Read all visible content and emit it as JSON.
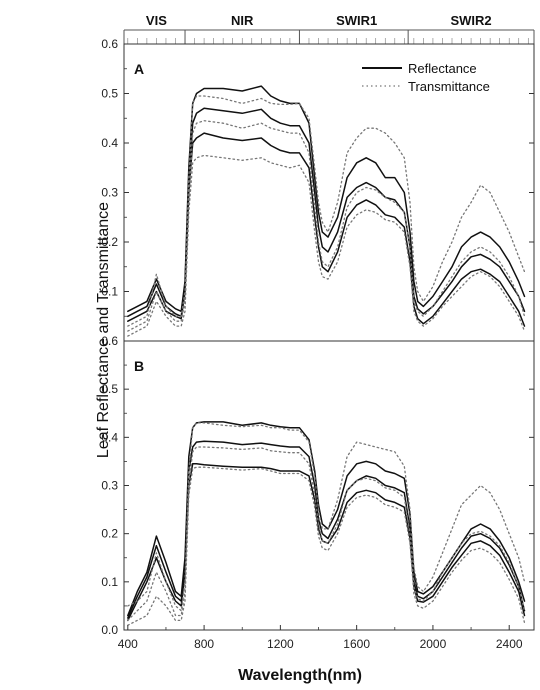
{
  "chart_data": {
    "type": "line",
    "xlabel": "Wavelength(nm)",
    "ylabel": "Leaf Reflectance and Transmittance",
    "xlim": [
      380,
      2530
    ],
    "ylim": [
      0,
      0.6
    ],
    "x_ticks": [
      "400",
      "800",
      "1200",
      "1600",
      "2000",
      "2400"
    ],
    "y_ticks": [
      "0.0",
      "0.1",
      "0.2",
      "0.3",
      "0.4",
      "0.5",
      "0.6"
    ],
    "regions": [
      {
        "label": "VIS",
        "center": 550,
        "end": 700
      },
      {
        "label": "NIR",
        "center": 1000,
        "end": 1300
      },
      {
        "label": "SWIR1",
        "center": 1600,
        "end": 1870
      },
      {
        "label": "SWIR2",
        "center": 2200,
        "end": null
      }
    ],
    "legend": {
      "position": "top-right",
      "entries": [
        {
          "label": "Reflectance",
          "style": "solid"
        },
        {
          "label": "Transmittance",
          "style": "dotted"
        }
      ]
    },
    "x": [
      400,
      450,
      500,
      550,
      600,
      650,
      680,
      700,
      720,
      740,
      760,
      800,
      900,
      1000,
      1100,
      1150,
      1200,
      1250,
      1300,
      1350,
      1380,
      1400,
      1420,
      1450,
      1500,
      1550,
      1600,
      1650,
      1700,
      1750,
      1800,
      1850,
      1880,
      1900,
      1920,
      1950,
      2000,
      2050,
      2100,
      2150,
      2200,
      2250,
      2300,
      2350,
      2400,
      2450,
      2480
    ],
    "panels": [
      {
        "label": "A",
        "series": [
          {
            "style": "solid",
            "values": [
              0.06,
              0.07,
              0.08,
              0.125,
              0.08,
              0.065,
              0.06,
              0.12,
              0.35,
              0.48,
              0.5,
              0.51,
              0.51,
              0.505,
              0.515,
              0.495,
              0.485,
              0.48,
              0.48,
              0.44,
              0.33,
              0.26,
              0.22,
              0.21,
              0.25,
              0.33,
              0.36,
              0.37,
              0.36,
              0.33,
              0.33,
              0.3,
              0.22,
              0.12,
              0.08,
              0.07,
              0.09,
              0.12,
              0.15,
              0.19,
              0.21,
              0.22,
              0.21,
              0.19,
              0.16,
              0.12,
              0.09
            ]
          },
          {
            "style": "solid",
            "values": [
              0.05,
              0.06,
              0.07,
              0.115,
              0.07,
              0.055,
              0.05,
              0.11,
              0.32,
              0.44,
              0.46,
              0.47,
              0.465,
              0.46,
              0.468,
              0.45,
              0.44,
              0.435,
              0.435,
              0.4,
              0.3,
              0.23,
              0.19,
              0.18,
              0.22,
              0.29,
              0.31,
              0.32,
              0.31,
              0.29,
              0.285,
              0.26,
              0.19,
              0.09,
              0.065,
              0.055,
              0.07,
              0.095,
              0.12,
              0.15,
              0.17,
              0.175,
              0.165,
              0.15,
              0.12,
              0.09,
              0.06
            ]
          },
          {
            "style": "solid",
            "values": [
              0.04,
              0.05,
              0.06,
              0.1,
              0.06,
              0.05,
              0.045,
              0.1,
              0.3,
              0.4,
              0.41,
              0.42,
              0.41,
              0.405,
              0.41,
              0.395,
              0.385,
              0.38,
              0.38,
              0.35,
              0.25,
              0.19,
              0.15,
              0.14,
              0.18,
              0.25,
              0.275,
              0.285,
              0.275,
              0.255,
              0.25,
              0.23,
              0.16,
              0.07,
              0.045,
              0.035,
              0.05,
              0.075,
              0.1,
              0.125,
              0.14,
              0.145,
              0.135,
              0.12,
              0.09,
              0.06,
              0.03
            ]
          },
          {
            "style": "dotted",
            "values": [
              0.03,
              0.04,
              0.05,
              0.135,
              0.07,
              0.05,
              0.05,
              0.1,
              0.33,
              0.48,
              0.495,
              0.495,
              0.49,
              0.48,
              0.49,
              0.48,
              0.478,
              0.478,
              0.48,
              0.45,
              0.35,
              0.28,
              0.24,
              0.22,
              0.28,
              0.38,
              0.41,
              0.43,
              0.43,
              0.42,
              0.4,
              0.37,
              0.28,
              0.15,
              0.1,
              0.08,
              0.11,
              0.16,
              0.2,
              0.25,
              0.28,
              0.315,
              0.3,
              0.26,
              0.22,
              0.17,
              0.14
            ]
          },
          {
            "style": "dotted",
            "values": [
              0.02,
              0.03,
              0.04,
              0.1,
              0.06,
              0.04,
              0.04,
              0.08,
              0.28,
              0.42,
              0.44,
              0.445,
              0.44,
              0.43,
              0.44,
              0.43,
              0.425,
              0.42,
              0.42,
              0.38,
              0.27,
              0.2,
              0.16,
              0.15,
              0.19,
              0.27,
              0.3,
              0.31,
              0.305,
              0.29,
              0.28,
              0.26,
              0.19,
              0.08,
              0.06,
              0.05,
              0.07,
              0.1,
              0.13,
              0.16,
              0.18,
              0.19,
              0.18,
              0.16,
              0.13,
              0.09,
              0.05
            ]
          },
          {
            "style": "dotted",
            "values": [
              0.01,
              0.02,
              0.03,
              0.08,
              0.05,
              0.03,
              0.03,
              0.06,
              0.26,
              0.36,
              0.37,
              0.375,
              0.37,
              0.365,
              0.37,
              0.36,
              0.355,
              0.35,
              0.355,
              0.32,
              0.22,
              0.16,
              0.13,
              0.125,
              0.16,
              0.23,
              0.255,
              0.265,
              0.26,
              0.245,
              0.24,
              0.22,
              0.15,
              0.06,
              0.04,
              0.03,
              0.045,
              0.07,
              0.09,
              0.11,
              0.13,
              0.14,
              0.13,
              0.11,
              0.08,
              0.05,
              0.02
            ]
          }
        ]
      },
      {
        "label": "B",
        "series": [
          {
            "style": "solid",
            "values": [
              0.03,
              0.08,
              0.12,
              0.195,
              0.14,
              0.08,
              0.07,
              0.15,
              0.36,
              0.42,
              0.43,
              0.432,
              0.432,
              0.425,
              0.43,
              0.425,
              0.422,
              0.42,
              0.42,
              0.395,
              0.33,
              0.26,
              0.22,
              0.21,
              0.25,
              0.32,
              0.345,
              0.35,
              0.345,
              0.33,
              0.325,
              0.315,
              0.24,
              0.12,
              0.08,
              0.075,
              0.09,
              0.12,
              0.15,
              0.18,
              0.21,
              0.22,
              0.21,
              0.185,
              0.15,
              0.1,
              0.06
            ]
          },
          {
            "style": "solid",
            "values": [
              0.025,
              0.07,
              0.11,
              0.175,
              0.12,
              0.07,
              0.06,
              0.13,
              0.33,
              0.38,
              0.39,
              0.392,
              0.39,
              0.385,
              0.388,
              0.385,
              0.382,
              0.38,
              0.38,
              0.36,
              0.3,
              0.23,
              0.2,
              0.19,
              0.23,
              0.29,
              0.31,
              0.32,
              0.315,
              0.3,
              0.295,
              0.285,
              0.21,
              0.1,
              0.07,
              0.065,
              0.08,
              0.11,
              0.14,
              0.17,
              0.195,
              0.2,
              0.19,
              0.17,
              0.135,
              0.09,
              0.04
            ]
          },
          {
            "style": "solid",
            "values": [
              0.02,
              0.06,
              0.1,
              0.15,
              0.1,
              0.06,
              0.05,
              0.12,
              0.3,
              0.345,
              0.345,
              0.343,
              0.34,
              0.338,
              0.338,
              0.335,
              0.33,
              0.33,
              0.33,
              0.32,
              0.27,
              0.21,
              0.185,
              0.18,
              0.21,
              0.265,
              0.285,
              0.29,
              0.285,
              0.27,
              0.265,
              0.255,
              0.19,
              0.09,
              0.06,
              0.058,
              0.07,
              0.1,
              0.13,
              0.155,
              0.18,
              0.185,
              0.175,
              0.155,
              0.12,
              0.08,
              0.03
            ]
          },
          {
            "style": "dotted",
            "values": [
              0.05,
              0.06,
              0.08,
              0.16,
              0.1,
              0.05,
              0.04,
              0.1,
              0.33,
              0.42,
              0.43,
              0.43,
              0.425,
              0.422,
              0.425,
              0.42,
              0.42,
              0.415,
              0.415,
              0.39,
              0.32,
              0.25,
              0.21,
              0.21,
              0.27,
              0.36,
              0.39,
              0.385,
              0.38,
              0.375,
              0.37,
              0.34,
              0.25,
              0.13,
              0.09,
              0.08,
              0.11,
              0.16,
              0.21,
              0.26,
              0.28,
              0.3,
              0.285,
              0.25,
              0.2,
              0.15,
              0.1
            ]
          },
          {
            "style": "dotted",
            "values": [
              0.02,
              0.04,
              0.06,
              0.12,
              0.08,
              0.03,
              0.03,
              0.08,
              0.3,
              0.37,
              0.38,
              0.38,
              0.378,
              0.375,
              0.378,
              0.372,
              0.37,
              0.368,
              0.368,
              0.345,
              0.28,
              0.22,
              0.185,
              0.18,
              0.22,
              0.29,
              0.31,
              0.315,
              0.31,
              0.295,
              0.29,
              0.275,
              0.2,
              0.09,
              0.065,
              0.06,
              0.08,
              0.12,
              0.15,
              0.18,
              0.2,
              0.205,
              0.195,
              0.175,
              0.14,
              0.09,
              0.04
            ]
          },
          {
            "style": "dotted",
            "values": [
              0.01,
              0.02,
              0.03,
              0.07,
              0.05,
              0.02,
              0.02,
              0.06,
              0.28,
              0.335,
              0.338,
              0.338,
              0.335,
              0.332,
              0.335,
              0.33,
              0.325,
              0.325,
              0.325,
              0.31,
              0.255,
              0.195,
              0.17,
              0.165,
              0.2,
              0.255,
              0.275,
              0.28,
              0.275,
              0.26,
              0.255,
              0.245,
              0.18,
              0.075,
              0.05,
              0.045,
              0.06,
              0.09,
              0.12,
              0.145,
              0.165,
              0.17,
              0.16,
              0.14,
              0.105,
              0.065,
              0.015
            ]
          }
        ]
      }
    ]
  }
}
